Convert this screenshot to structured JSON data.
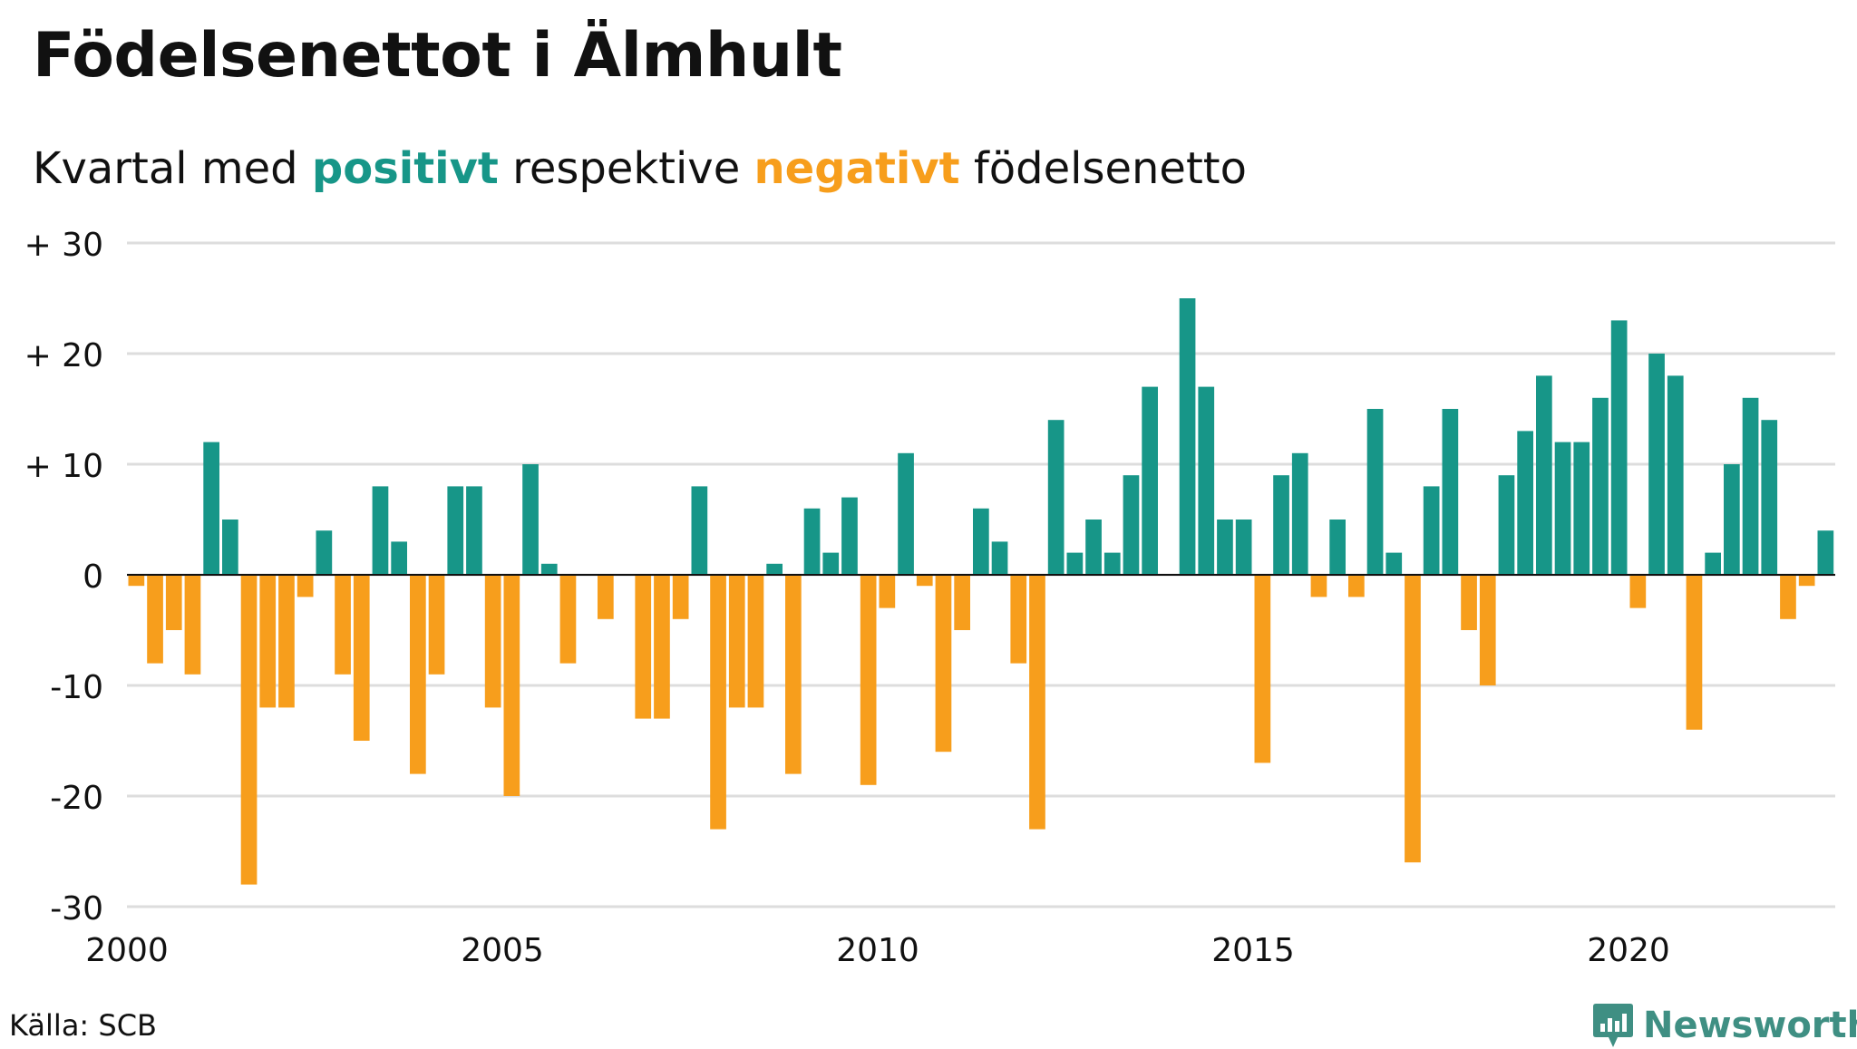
{
  "title": "Födelsenettot i Älmhult",
  "subtitle": {
    "before": "Kvartal med ",
    "positive_word": "positivt",
    "middle": " respektive ",
    "negative_word": "negativt",
    "after": " födelsenetto"
  },
  "source": "Källa: SCB",
  "logo_text": "Newsworthy",
  "colors": {
    "positive": "#179688",
    "negative": "#f79e1c",
    "grid": "#dddddd",
    "baseline": "#111111",
    "logo": "#3f8f83"
  },
  "chart_data": {
    "type": "bar",
    "xlim": [
      2000,
      2023
    ],
    "ylim": [
      -30,
      30
    ],
    "yticks": [
      {
        "value": 30,
        "label": "+ 30"
      },
      {
        "value": 20,
        "label": "+ 20"
      },
      {
        "value": 10,
        "label": "+ 10"
      },
      {
        "value": 0,
        "label": "0"
      },
      {
        "value": -10,
        "label": "-10"
      },
      {
        "value": -20,
        "label": "-20"
      },
      {
        "value": -30,
        "label": "-30"
      }
    ],
    "xticks": [
      {
        "value": 2000,
        "label": "2000"
      },
      {
        "value": 2005,
        "label": "2005"
      },
      {
        "value": 2010,
        "label": "2010"
      },
      {
        "value": 2015,
        "label": "2015"
      },
      {
        "value": 2020,
        "label": "2020"
      }
    ],
    "grid": true,
    "start_period": "2000 Q1",
    "values": [
      -1,
      -8,
      -5,
      -9,
      12,
      5,
      -28,
      -12,
      -12,
      -2,
      4,
      -9,
      -15,
      8,
      3,
      -18,
      -9,
      8,
      8,
      -12,
      -20,
      10,
      1,
      -8,
      0,
      -4,
      0,
      -13,
      -13,
      -4,
      8,
      -23,
      -12,
      -12,
      1,
      -18,
      6,
      2,
      7,
      -19,
      -3,
      11,
      -1,
      -16,
      -5,
      6,
      3,
      -8,
      -23,
      14,
      2,
      5,
      2,
      9,
      17,
      0,
      25,
      17,
      5,
      5,
      -17,
      9,
      11,
      -2,
      5,
      -2,
      15,
      2,
      -26,
      8,
      15,
      -5,
      -10,
      9,
      13,
      18,
      12,
      12,
      16,
      23,
      -3,
      20,
      18,
      -14,
      2,
      10,
      16,
      14,
      -4,
      -1,
      4
    ]
  }
}
